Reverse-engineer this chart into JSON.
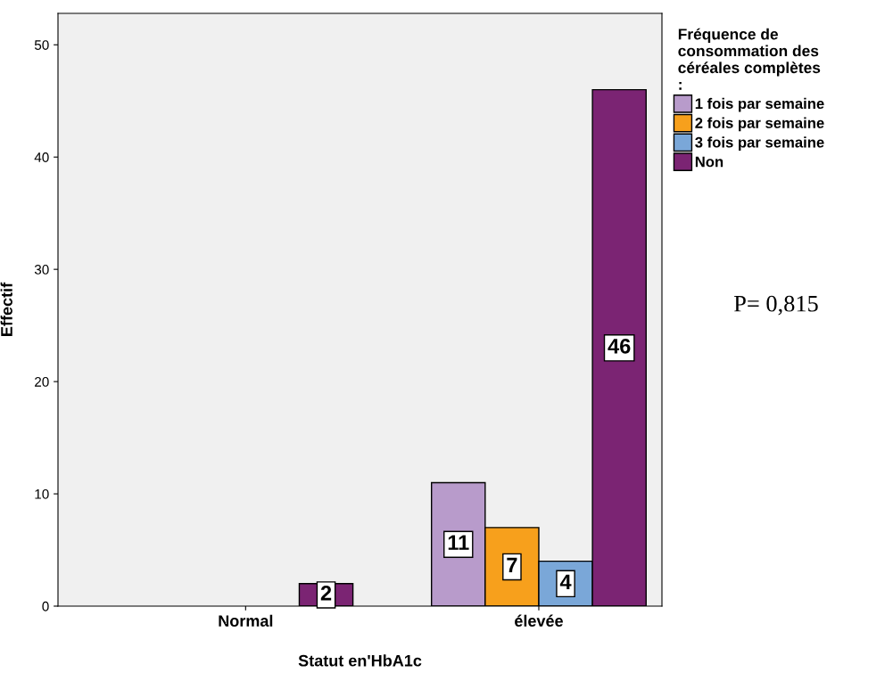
{
  "chart_data": {
    "type": "bar",
    "xlabel": "Statut en'HbA1c",
    "ylabel": "Effectif",
    "legend_title": "Fréquence de\nconsommation des\ncéréales complètes\n:",
    "categories": [
      "Normal",
      "élevée"
    ],
    "series": [
      {
        "name": "1 fois par semaine",
        "color": "#b89bcb",
        "values": [
          null,
          11
        ]
      },
      {
        "name": "2 fois par semaine",
        "color": "#f7a01c",
        "values": [
          null,
          7
        ]
      },
      {
        "name": "3 fois par semaine",
        "color": "#7aa7d8",
        "values": [
          null,
          4
        ]
      },
      {
        "name": "Non",
        "color": "#7b2473",
        "values": [
          2,
          46
        ]
      }
    ],
    "ylim": [
      0,
      52.8
    ],
    "yticks": [
      0,
      10,
      20,
      30,
      40,
      50
    ],
    "grid": false,
    "legend": "right",
    "data_labels": true,
    "annotations": [
      "P= 0,815"
    ]
  }
}
